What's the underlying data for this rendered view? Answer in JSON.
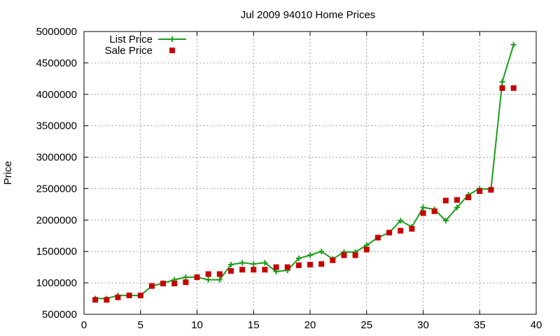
{
  "chart_data": {
    "type": "line",
    "title": "Jul 2009 94010 Home Prices",
    "xlabel": "",
    "ylabel": "Price",
    "xlim": [
      0,
      40
    ],
    "ylim": [
      500000,
      5000000
    ],
    "x_ticks": [
      0,
      5,
      10,
      15,
      20,
      25,
      30,
      35,
      40
    ],
    "y_ticks": [
      500000,
      1000000,
      1500000,
      2000000,
      2500000,
      3000000,
      3500000,
      4000000,
      4500000,
      5000000
    ],
    "x_tick_labels": [
      "0",
      "5",
      "10",
      "15",
      "20",
      "25",
      "30",
      "35",
      "40"
    ],
    "y_tick_labels": [
      "500000",
      "1000000",
      "1500000",
      "2000000",
      "2500000",
      "3000000",
      "3500000",
      "4000000",
      "4500000",
      "5000000"
    ],
    "grid": true,
    "legend_position": "top-left",
    "x": [
      1,
      2,
      3,
      4,
      5,
      6,
      7,
      8,
      9,
      10,
      11,
      12,
      13,
      14,
      15,
      16,
      17,
      18,
      19,
      20,
      21,
      22,
      23,
      24,
      25,
      26,
      27,
      28,
      29,
      30,
      31,
      32,
      33,
      34,
      35,
      36,
      37,
      38
    ],
    "series": [
      {
        "name": "List Price",
        "style": "line-plus",
        "color": "#1a9e1a",
        "values": [
          750000,
          750000,
          800000,
          800000,
          800000,
          950000,
          995000,
          1050000,
          1090000,
          1090000,
          1050000,
          1050000,
          1290000,
          1320000,
          1300000,
          1320000,
          1180000,
          1200000,
          1390000,
          1440000,
          1500000,
          1380000,
          1490000,
          1490000,
          1600000,
          1720000,
          1800000,
          1990000,
          1890000,
          2200000,
          2170000,
          1990000,
          2200000,
          2400000,
          2500000,
          2490000,
          4200000,
          4790000
        ]
      },
      {
        "name": "Sale Price",
        "style": "square-markers",
        "color": "#c80000",
        "values": [
          730000,
          730000,
          770000,
          800000,
          800000,
          950000,
          990000,
          990000,
          1010000,
          1090000,
          1140000,
          1140000,
          1190000,
          1210000,
          1210000,
          1210000,
          1250000,
          1250000,
          1280000,
          1290000,
          1300000,
          1360000,
          1440000,
          1440000,
          1530000,
          1720000,
          1800000,
          1830000,
          1860000,
          2110000,
          2140000,
          2310000,
          2320000,
          2360000,
          2460000,
          2480000,
          4100000,
          4100000
        ]
      }
    ]
  }
}
